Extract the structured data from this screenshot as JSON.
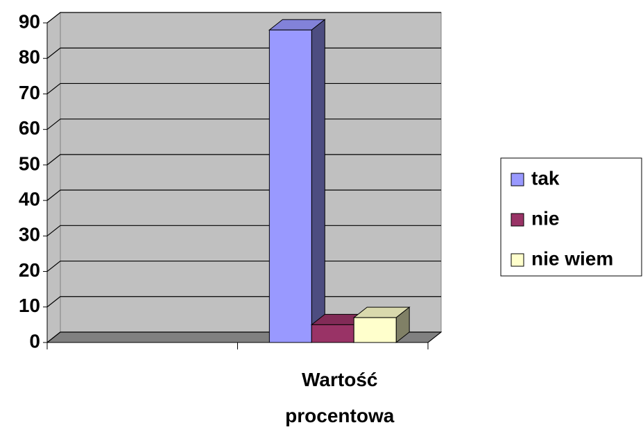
{
  "chart_data": {
    "type": "bar3d",
    "categories": [
      null,
      "Wartość procentowa"
    ],
    "series": [
      {
        "name": "tak",
        "color": "#9999ff",
        "values": [
          null,
          88
        ]
      },
      {
        "name": "nie",
        "color": "#993366",
        "values": [
          null,
          5
        ]
      },
      {
        "name": "nie wiem",
        "color": "#ffffcc",
        "values": [
          null,
          7
        ]
      }
    ],
    "ylim": [
      0,
      90
    ],
    "yticks": [
      0,
      10,
      20,
      30,
      40,
      50,
      60,
      70,
      80,
      90
    ],
    "grid": true,
    "legend": "right"
  }
}
